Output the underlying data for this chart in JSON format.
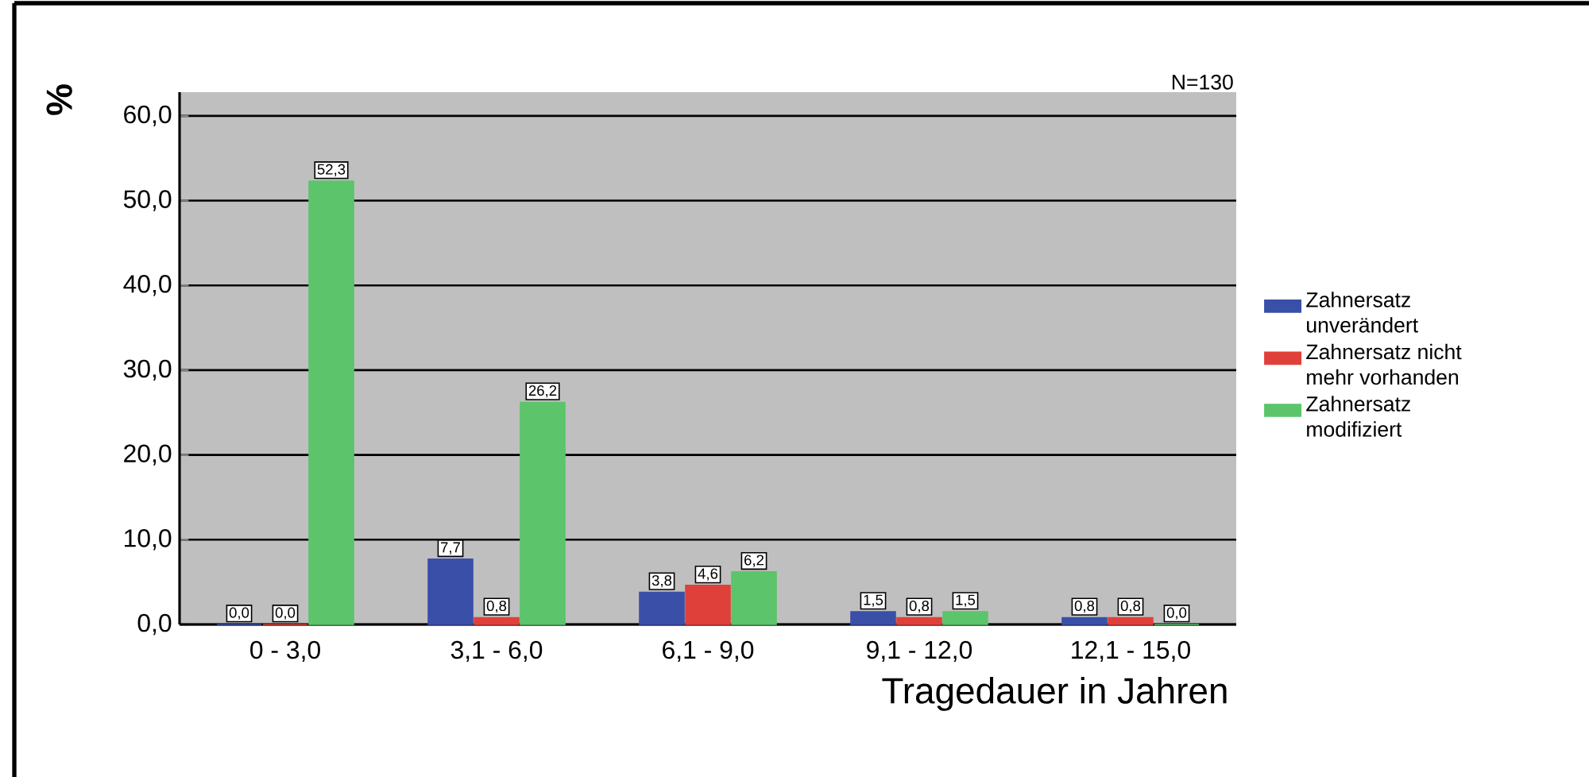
{
  "chart_data": {
    "type": "bar",
    "xlabel": "Tragedauer in Jahren",
    "ylabel": "%",
    "annotations": [
      "N=130"
    ],
    "categories": [
      "0 - 3,0",
      "3,1 - 6,0",
      "6,1 - 9,0",
      "9,1 - 12,0",
      "12,1 - 15,0"
    ],
    "series": [
      {
        "name": "Zahnersatz unverändert",
        "color": "#3a4fa8",
        "values": [
          0.0,
          7.7,
          3.8,
          1.5,
          0.8
        ],
        "value_labels": [
          "0,0",
          "7,7",
          "3,8",
          "1,5",
          "0,8"
        ]
      },
      {
        "name": "Zahnersatz nicht mehr vorhanden",
        "color": "#e0403a",
        "values": [
          0.0,
          0.8,
          4.6,
          0.8,
          0.8
        ],
        "value_labels": [
          "0,0",
          "0,8",
          "4,6",
          "0,8",
          "0,8"
        ]
      },
      {
        "name": "Zahnersatz modifiziert",
        "color": "#5cc46a",
        "values": [
          52.3,
          26.2,
          6.2,
          1.5,
          0.0
        ],
        "value_labels": [
          "52,3",
          "26,2",
          "6,2",
          "1,5",
          "0,0"
        ]
      }
    ],
    "ylim": [
      0,
      62.8
    ],
    "yticks": [
      {
        "value": 0,
        "label": "0,0"
      },
      {
        "value": 10,
        "label": "10,0"
      },
      {
        "value": 20,
        "label": "20,0"
      },
      {
        "value": 30,
        "label": "30,0"
      },
      {
        "value": 40,
        "label": "40,0"
      },
      {
        "value": 50,
        "label": "50,0"
      },
      {
        "value": 60,
        "label": "60,0"
      }
    ],
    "grid": "y",
    "legend": "right"
  }
}
